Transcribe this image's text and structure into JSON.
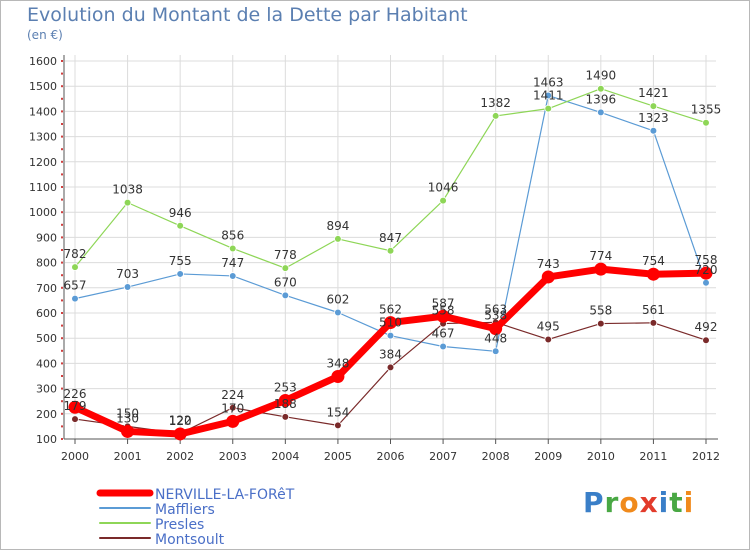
{
  "title": "Evolution du Montant de la Dette par Habitant",
  "unit_label": "(en €)",
  "logo": {
    "text": "Proxiti",
    "letters": [
      {
        "ch": "P",
        "color": "#3a7fc8"
      },
      {
        "ch": "r",
        "color": "#49a844"
      },
      {
        "ch": "o",
        "color": "#f08a1c"
      },
      {
        "ch": "x",
        "color": "#e23b2b"
      },
      {
        "ch": "i",
        "color": "#3a7fc8"
      },
      {
        "ch": "t",
        "color": "#49a844"
      },
      {
        "ch": "i",
        "color": "#f08a1c"
      }
    ]
  },
  "chart_data": {
    "type": "line",
    "x": [
      "2000",
      "2001",
      "2002",
      "2003",
      "2004",
      "2005",
      "2006",
      "2007",
      "2008",
      "2009",
      "2010",
      "2011",
      "2012"
    ],
    "ylim": [
      100,
      1600
    ],
    "yticks": [
      100,
      200,
      300,
      400,
      500,
      600,
      700,
      800,
      900,
      1000,
      1100,
      1200,
      1300,
      1400,
      1500,
      1600
    ],
    "grid": true,
    "legend_position": "bottom-left",
    "series": [
      {
        "name": "NERVILLE-LA-FORêT",
        "color": "#ff0000",
        "values": [
          226,
          130,
          120,
          170,
          253,
          348,
          562,
          587,
          538,
          743,
          774,
          754,
          758
        ]
      },
      {
        "name": "Maffliers",
        "color": "#5b9bd5",
        "values": [
          657,
          703,
          755,
          747,
          670,
          602,
          510,
          467,
          448,
          1463,
          1396,
          1323,
          720
        ]
      },
      {
        "name": "Presles",
        "color": "#8ed657",
        "values": [
          782,
          1038,
          946,
          856,
          778,
          894,
          847,
          1046,
          1382,
          1411,
          1490,
          1421,
          1355
        ]
      },
      {
        "name": "Montsoult",
        "color": "#7a2a2a",
        "values": [
          179,
          150,
          122,
          224,
          188,
          154,
          384,
          558,
          563,
          495,
          558,
          561,
          492
        ]
      }
    ]
  }
}
